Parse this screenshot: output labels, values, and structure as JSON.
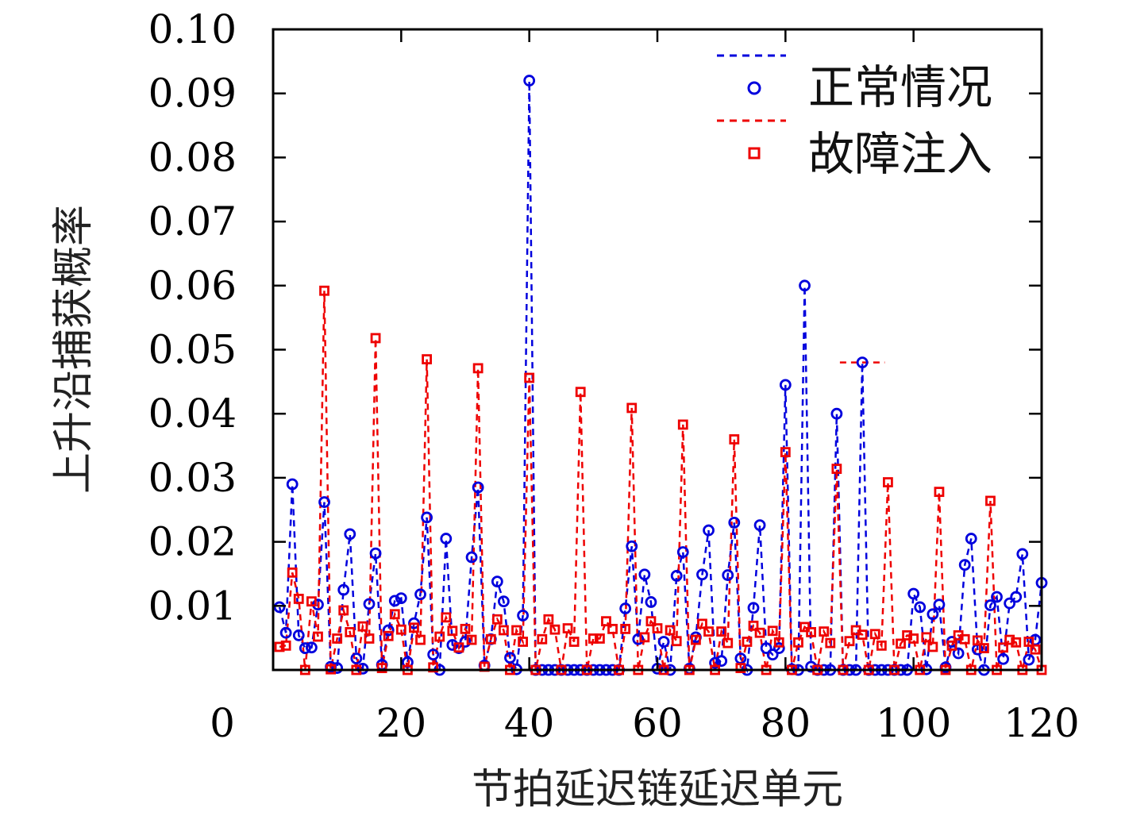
{
  "chart_data": {
    "type": "line",
    "title": "",
    "xlabel": "节拍延迟链延迟单元",
    "ylabel": "上升沿捕获概率",
    "xlim": [
      0,
      120
    ],
    "ylim": [
      0,
      0.1
    ],
    "xticks": [
      0,
      20,
      40,
      60,
      80,
      100,
      120
    ],
    "xtick_labels": [
      "0",
      "20",
      "40",
      "60",
      "80",
      "100",
      "120"
    ],
    "yticks": [
      0.01,
      0.02,
      0.03,
      0.04,
      0.05,
      0.06,
      0.07,
      0.08,
      0.09,
      0.1
    ],
    "ytick_labels": [
      "0.01",
      "0.02",
      "0.03",
      "0.04",
      "0.05",
      "0.06",
      "0.07",
      "0.08",
      "0.09",
      "0.10"
    ],
    "grid": false,
    "legend_position": "top-right",
    "series": [
      {
        "name": "正常情况",
        "color": "#0000dd",
        "marker": "circle",
        "line_style": "dashed",
        "x": [
          1,
          2,
          3,
          4,
          5,
          6,
          7,
          8,
          9,
          10,
          11,
          12,
          13,
          14,
          15,
          16,
          17,
          18,
          19,
          20,
          21,
          22,
          23,
          24,
          25,
          26,
          27,
          28,
          29,
          30,
          31,
          32,
          33,
          34,
          35,
          36,
          37,
          38,
          39,
          40,
          41,
          42,
          43,
          44,
          45,
          46,
          47,
          48,
          49,
          50,
          51,
          52,
          53,
          54,
          55,
          56,
          57,
          58,
          59,
          60,
          61,
          62,
          63,
          64,
          65,
          66,
          67,
          68,
          69,
          70,
          71,
          72,
          73,
          74,
          75,
          76,
          77,
          78,
          79,
          80,
          81,
          82,
          83,
          84,
          85,
          86,
          87,
          88,
          89,
          90,
          91,
          92,
          93,
          94,
          95,
          96,
          97,
          98,
          99,
          100,
          101,
          102,
          103,
          104,
          105,
          106,
          107,
          108,
          109,
          110,
          111,
          112,
          113,
          114,
          115,
          116,
          117,
          118,
          119,
          120
        ],
        "y": [
          0.0098,
          0.0058,
          0.029,
          0.0054,
          0.0034,
          0.0035,
          0.0102,
          0.0262,
          0.0005,
          0.0003,
          0.0125,
          0.0212,
          0.0018,
          0.0002,
          0.0103,
          0.0182,
          0.0008,
          0.0062,
          0.0108,
          0.0112,
          0.0012,
          0.0073,
          0.0118,
          0.0238,
          0.0024,
          0.0,
          0.0205,
          0.0039,
          0.0034,
          0.0044,
          0.0176,
          0.0285,
          0.0007,
          0.0048,
          0.0138,
          0.0107,
          0.0019,
          0.0001,
          0.0085,
          0.092,
          0.0,
          0.0,
          0.0,
          0.0,
          0.0,
          0.0,
          0.0,
          0.0,
          0.0,
          0.0,
          0.0,
          0.0,
          0.0,
          0.0,
          0.0096,
          0.0193,
          0.0048,
          0.0149,
          0.0106,
          0.0002,
          0.0044,
          0.0,
          0.0147,
          0.0184,
          0.0002,
          0.0051,
          0.0149,
          0.0218,
          0.0011,
          0.0014,
          0.0148,
          0.023,
          0.0018,
          0.0,
          0.0097,
          0.0226,
          0.0034,
          0.0024,
          0.0034,
          0.0445,
          0.0001,
          0.0,
          0.06,
          0.0005,
          0.0,
          0.0,
          0.0,
          0.04,
          0.0,
          0.0,
          0.0,
          0.048,
          0.0,
          0.0,
          0.0,
          0.0,
          0.0,
          0.0,
          0.0,
          0.0119,
          0.0098,
          0.0001,
          0.0087,
          0.0102,
          0.0004,
          0.0044,
          0.0026,
          0.0164,
          0.0205,
          0.0032,
          0.0,
          0.0101,
          0.0114,
          0.0017,
          0.0104,
          0.0114,
          0.0181,
          0.0016,
          0.0047,
          0.0136
        ]
      },
      {
        "name": "故障注入",
        "color": "#ee0000",
        "marker": "square",
        "line_style": "dashed",
        "x": [
          1,
          2,
          3,
          4,
          5,
          6,
          7,
          8,
          9,
          10,
          11,
          12,
          13,
          14,
          15,
          16,
          17,
          18,
          19,
          20,
          21,
          22,
          23,
          24,
          25,
          26,
          27,
          28,
          29,
          30,
          31,
          32,
          33,
          34,
          35,
          36,
          37,
          38,
          39,
          40,
          41,
          42,
          43,
          44,
          45,
          46,
          47,
          48,
          49,
          50,
          51,
          52,
          53,
          54,
          55,
          56,
          57,
          58,
          59,
          60,
          61,
          62,
          63,
          64,
          65,
          66,
          67,
          68,
          69,
          70,
          71,
          72,
          73,
          74,
          75,
          76,
          77,
          78,
          79,
          80,
          81,
          82,
          83,
          84,
          85,
          86,
          87,
          88,
          89,
          90,
          91,
          92,
          93,
          94,
          95,
          96,
          97,
          98,
          99,
          100,
          101,
          102,
          103,
          104,
          105,
          106,
          107,
          108,
          109,
          110,
          111,
          112,
          113,
          114,
          115,
          116,
          117,
          118,
          119,
          120
        ],
        "y": [
          0.0036,
          0.0038,
          0.0152,
          0.0111,
          0.0,
          0.0107,
          0.0052,
          0.0592,
          0.0001,
          0.0049,
          0.0093,
          0.0059,
          0.0,
          0.0068,
          0.0049,
          0.0518,
          0.0003,
          0.0053,
          0.0087,
          0.0063,
          0.0,
          0.0066,
          0.0047,
          0.0485,
          0.0004,
          0.0052,
          0.0082,
          0.0061,
          0.0035,
          0.0064,
          0.0047,
          0.0471,
          0.0005,
          0.0048,
          0.0079,
          0.0062,
          0.0,
          0.0062,
          0.0044,
          0.0456,
          0.0,
          0.0048,
          0.0079,
          0.0063,
          0.0,
          0.0065,
          0.0044,
          0.0434,
          0.0,
          0.0049,
          0.0049,
          0.0076,
          0.0064,
          0.0,
          0.0064,
          0.0409,
          0.0,
          0.0051,
          0.0076,
          0.0065,
          0.0,
          0.0062,
          0.0045,
          0.0383,
          0.0,
          0.0047,
          0.0072,
          0.006,
          0.0,
          0.006,
          0.0042,
          0.036,
          0.0003,
          0.0044,
          0.0069,
          0.0058,
          0.0,
          0.0061,
          0.0043,
          0.034,
          0.0,
          0.0043,
          0.0067,
          0.0059,
          0.0,
          0.006,
          0.0042,
          0.0314,
          0.0,
          0.0045,
          0.0062,
          0.0055,
          0.0,
          0.0056,
          0.0038,
          0.0293,
          0.0,
          0.0041,
          0.0054,
          0.0049,
          0.0,
          0.0051,
          0.0036,
          0.0278,
          0.0,
          0.0038,
          0.0054,
          0.0048,
          0.0,
          0.0046,
          0.0034,
          0.0264,
          0.0,
          0.0035,
          0.0047,
          0.0043,
          0.0,
          0.0044,
          0.0032,
          0.0
        ]
      }
    ],
    "annotations": [
      {
        "type": "dash-segment",
        "color": "#ee0000",
        "x_start": 88.5,
        "x_end": 95.5,
        "y": 0.048
      }
    ]
  }
}
